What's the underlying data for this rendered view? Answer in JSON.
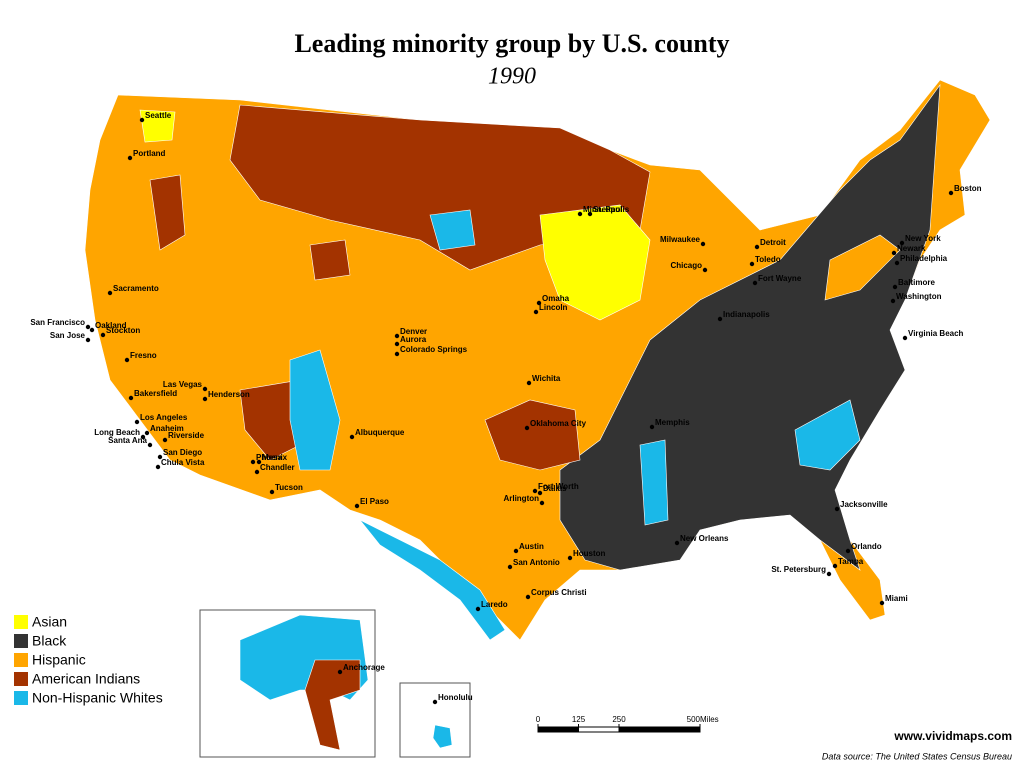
{
  "header": {
    "title": "Leading minority group by U.S. county",
    "subtitle": "1990"
  },
  "legend": [
    {
      "label": "Asian",
      "color": "#ffff00"
    },
    {
      "label": "Black",
      "color": "#333333"
    },
    {
      "label": "Hispanic",
      "color": "#ffa500"
    },
    {
      "label": "American Indians",
      "color": "#a33300"
    },
    {
      "label": "Non-Hispanic Whites",
      "color": "#1ab8e8"
    }
  ],
  "cities": [
    "Seattle",
    "Portland",
    "Sacramento",
    "San Francisco",
    "Oakland",
    "Stockton",
    "San Jose",
    "Fresno",
    "Bakersfield",
    "Las Vegas",
    "Henderson",
    "Los Angeles",
    "Long Beach",
    "Anaheim",
    "Riverside",
    "Santa Ana",
    "San Diego",
    "Chula Vista",
    "Phoenix",
    "Mesa",
    "Chandler",
    "Tucson",
    "Albuquerque",
    "El Paso",
    "Denver",
    "Aurora",
    "Colorado Springs",
    "Omaha",
    "Lincoln",
    "Wichita",
    "Oklahoma City",
    "Fort Worth",
    "Dallas",
    "Arlington",
    "Austin",
    "Houston",
    "San Antonio",
    "Corpus Christi",
    "Laredo",
    "Minneapolis",
    "St. Paul",
    "Milwaukee",
    "Chicago",
    "Detroit",
    "Toledo",
    "Fort Wayne",
    "Indianapolis",
    "Memphis",
    "New Orleans",
    "Jacksonville",
    "Orlando",
    "Tampa",
    "St. Petersburg",
    "Miami",
    "Virginia Beach",
    "Washington",
    "Baltimore",
    "Philadelphia",
    "New York",
    "Newark",
    "Boston",
    "Honolulu",
    "Anchorage"
  ],
  "scale_bar": {
    "ticks": [
      0,
      125,
      250,
      500
    ],
    "unit": "Miles"
  },
  "credit": "www.vividmaps.com",
  "source": "Data source: The United States Census Bureau"
}
